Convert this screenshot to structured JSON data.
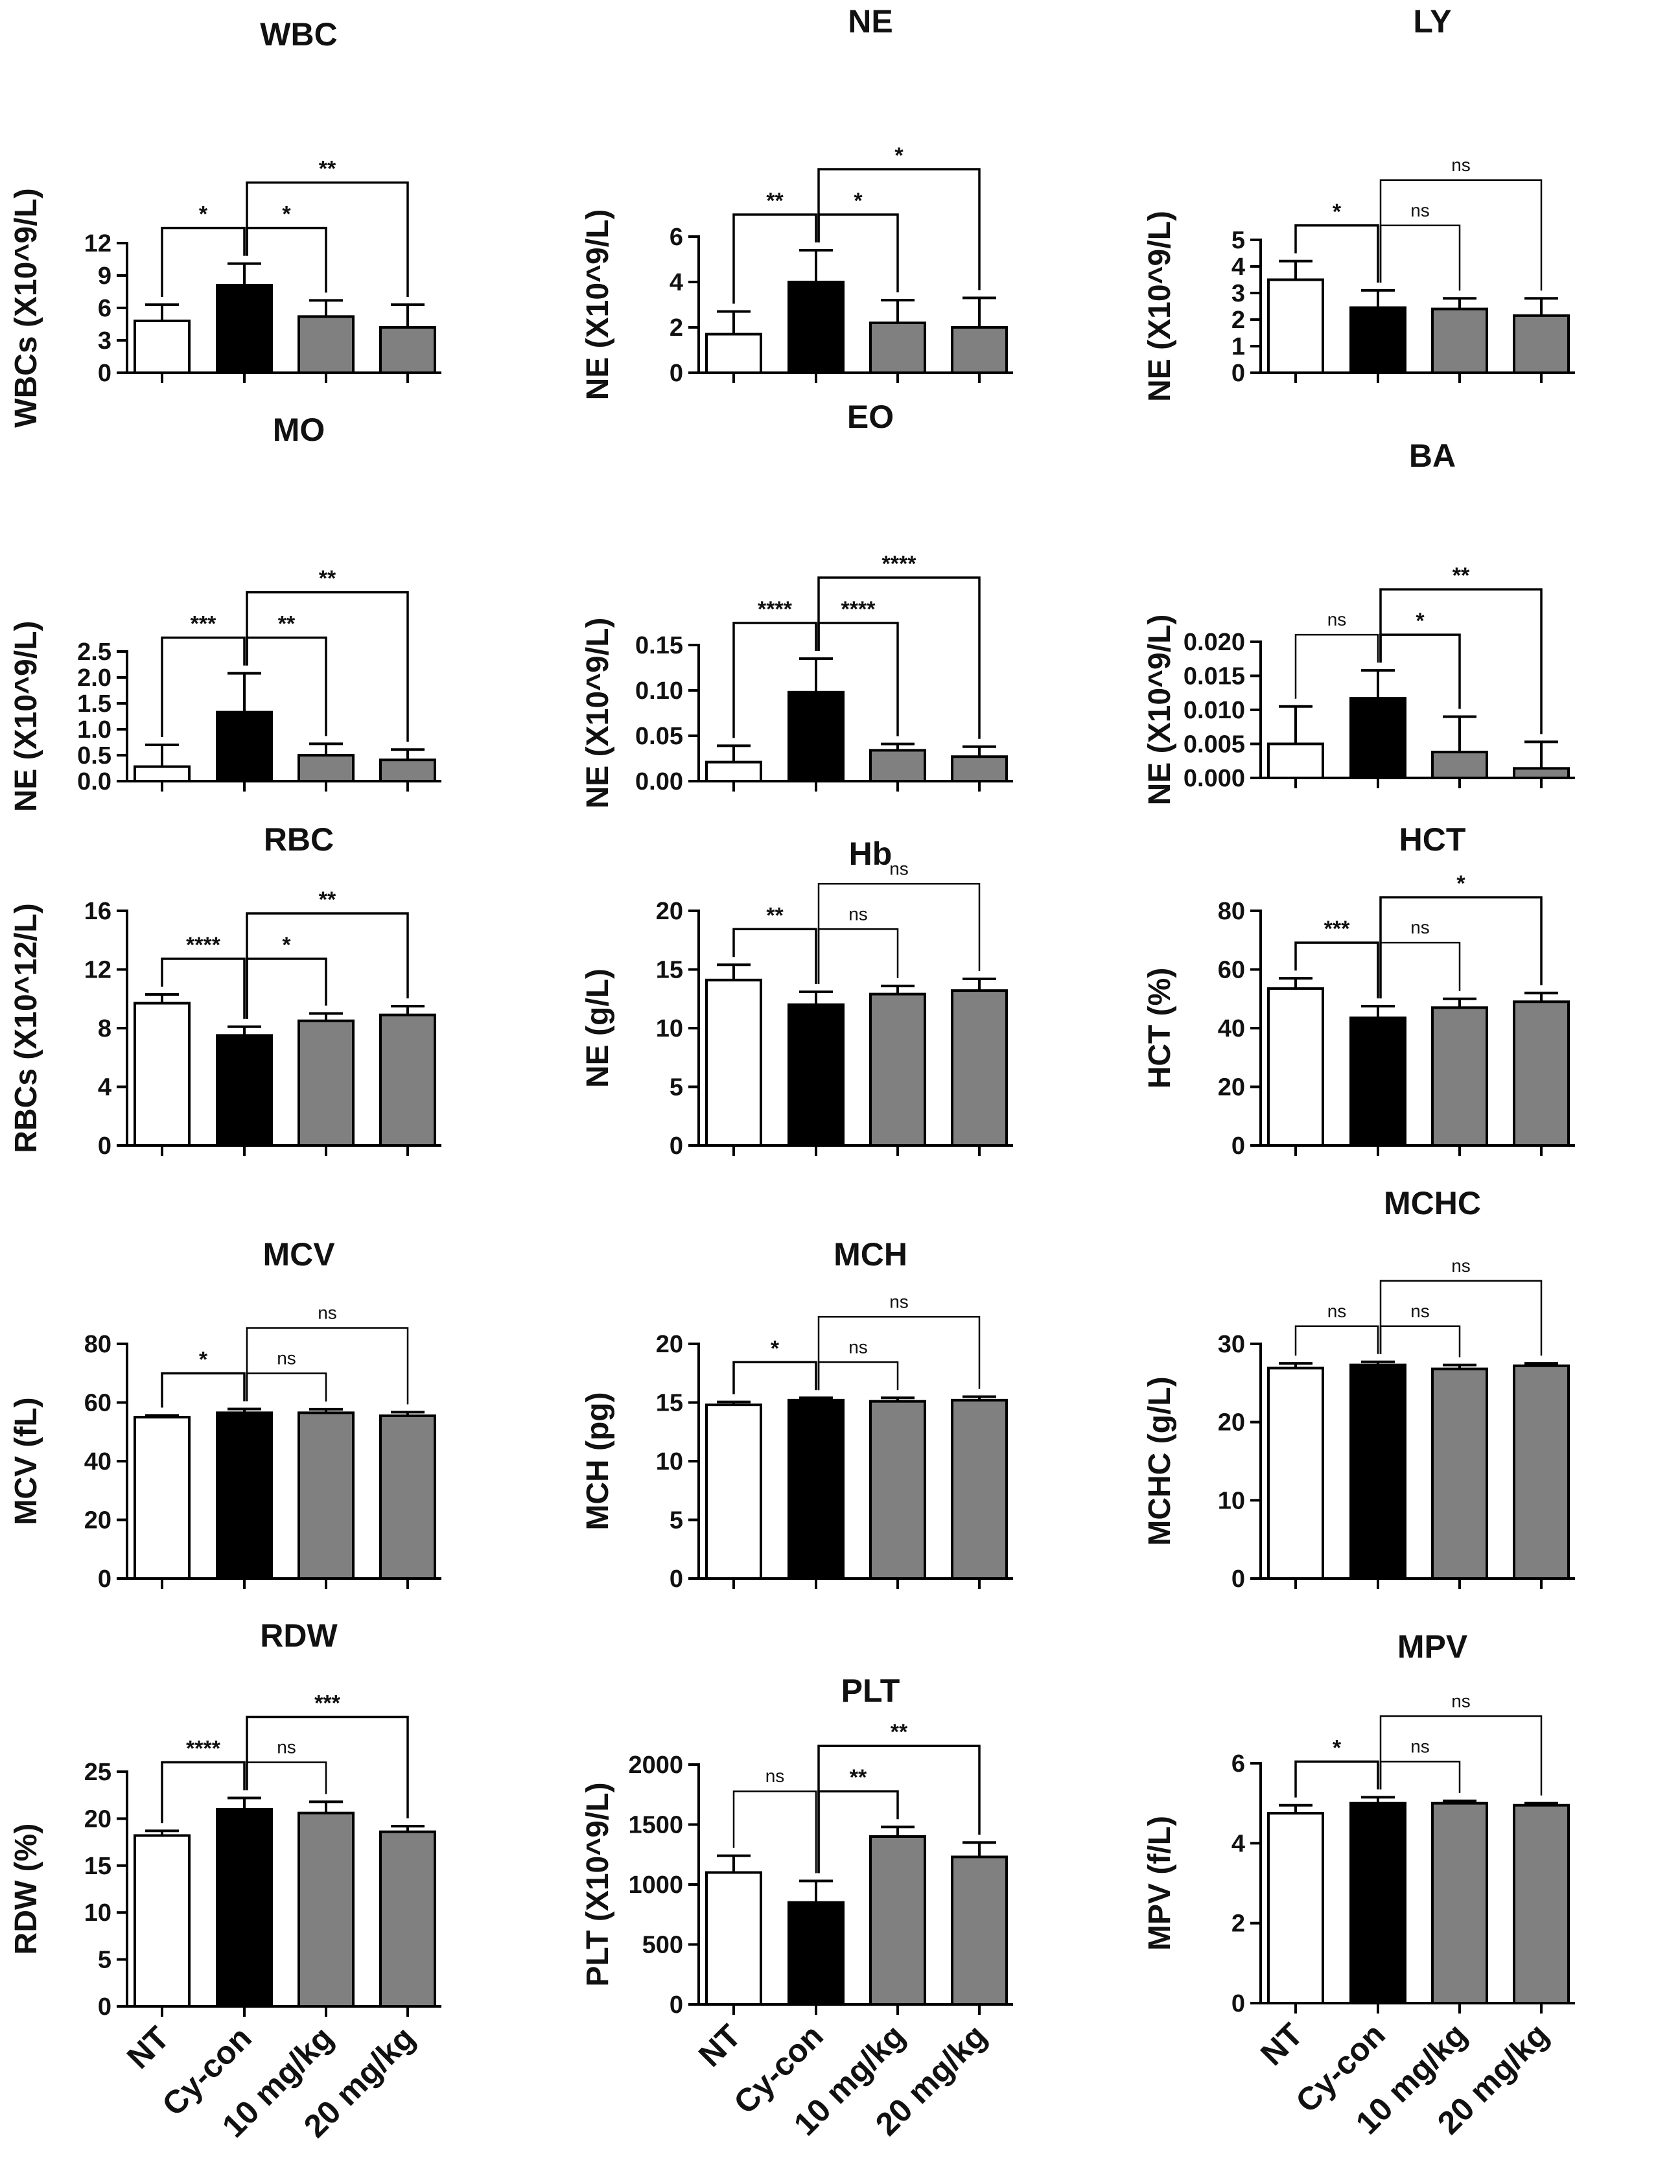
{
  "categories": [
    "NT",
    "Cy-con",
    "10 mg/kg",
    "20 mg/kg"
  ],
  "colors": {
    "NT": "#ffffff",
    "Cy-con": "#000000",
    "10 mg/kg": "#808080",
    "20 mg/kg": "#808080",
    "stroke": "#000000"
  },
  "chart_data": [
    {
      "type": "bar",
      "title": "WBC",
      "ylabel": "WBCs (X10^9/L)",
      "ylim": [
        0,
        12
      ],
      "yticks": [
        "0",
        "3",
        "6",
        "9",
        "12"
      ],
      "categories": [
        "NT",
        "Cy-con",
        "10 mg/kg",
        "20 mg/kg"
      ],
      "values": [
        4.8,
        8.1,
        5.2,
        4.2
      ],
      "errors": [
        1.5,
        2.0,
        1.5,
        2.1
      ],
      "comparisons": [
        {
          "from": "NT",
          "to": "Cy-con",
          "label": "*"
        },
        {
          "from": "Cy-con",
          "to": "10 mg/kg",
          "label": "*"
        },
        {
          "from": "Cy-con",
          "to": "20 mg/kg",
          "label": "**"
        }
      ]
    },
    {
      "type": "bar",
      "title": "NE",
      "ylabel": "NE (X10^9/L)",
      "ylim": [
        0,
        6
      ],
      "yticks": [
        "0",
        "2",
        "4",
        "6"
      ],
      "categories": [
        "NT",
        "Cy-con",
        "10 mg/kg",
        "20 mg/kg"
      ],
      "values": [
        1.7,
        4.0,
        2.2,
        2.0
      ],
      "errors": [
        1.0,
        1.4,
        1.0,
        1.3
      ],
      "comparisons": [
        {
          "from": "NT",
          "to": "Cy-con",
          "label": "**"
        },
        {
          "from": "Cy-con",
          "to": "10 mg/kg",
          "label": "*"
        },
        {
          "from": "Cy-con",
          "to": "20 mg/kg",
          "label": "*"
        }
      ]
    },
    {
      "type": "bar",
      "title": "LY",
      "ylabel": "NE (X10^9/L)",
      "ylim": [
        0,
        5
      ],
      "yticks": [
        "0",
        "1",
        "2",
        "3",
        "4",
        "5"
      ],
      "categories": [
        "NT",
        "Cy-con",
        "10 mg/kg",
        "20 mg/kg"
      ],
      "values": [
        3.5,
        2.45,
        2.4,
        2.15
      ],
      "errors": [
        0.7,
        0.65,
        0.4,
        0.65
      ],
      "comparisons": [
        {
          "from": "NT",
          "to": "Cy-con",
          "label": "*"
        },
        {
          "from": "Cy-con",
          "to": "10 mg/kg",
          "label": "ns"
        },
        {
          "from": "Cy-con",
          "to": "20 mg/kg",
          "label": "ns"
        }
      ]
    },
    {
      "type": "bar",
      "title": "MO",
      "ylabel": "NE (X10^9/L)",
      "ylim": [
        0,
        2.5
      ],
      "yticks": [
        "0.0",
        "0.5",
        "1.0",
        "1.5",
        "2.0",
        "2.5"
      ],
      "categories": [
        "NT",
        "Cy-con",
        "10 mg/kg",
        "20 mg/kg"
      ],
      "values": [
        0.28,
        1.33,
        0.5,
        0.41
      ],
      "errors": [
        0.42,
        0.75,
        0.22,
        0.2
      ],
      "comparisons": [
        {
          "from": "NT",
          "to": "Cy-con",
          "label": "***"
        },
        {
          "from": "Cy-con",
          "to": "10 mg/kg",
          "label": "**"
        },
        {
          "from": "Cy-con",
          "to": "20 mg/kg",
          "label": "**"
        }
      ]
    },
    {
      "type": "bar",
      "title": "EO",
      "ylabel": "NE (X10^9/L)",
      "ylim": [
        0,
        0.15
      ],
      "yticks": [
        "0.00",
        "0.05",
        "0.10",
        "0.15"
      ],
      "categories": [
        "NT",
        "Cy-con",
        "10 mg/kg",
        "20 mg/kg"
      ],
      "values": [
        0.021,
        0.098,
        0.034,
        0.027
      ],
      "errors": [
        0.018,
        0.037,
        0.007,
        0.011
      ],
      "comparisons": [
        {
          "from": "NT",
          "to": "Cy-con",
          "label": "****"
        },
        {
          "from": "Cy-con",
          "to": "10 mg/kg",
          "label": "****"
        },
        {
          "from": "Cy-con",
          "to": "20 mg/kg",
          "label": "****"
        }
      ]
    },
    {
      "type": "bar",
      "title": "BA",
      "ylabel": "NE (X10^9/L)",
      "ylim": [
        0,
        0.02
      ],
      "yticks": [
        "0.000",
        "0.005",
        "0.010",
        "0.015",
        "0.020"
      ],
      "categories": [
        "NT",
        "Cy-con",
        "10 mg/kg",
        "20 mg/kg"
      ],
      "values": [
        0.005,
        0.0117,
        0.0038,
        0.0014
      ],
      "errors": [
        0.0055,
        0.0041,
        0.0052,
        0.0039
      ],
      "comparisons": [
        {
          "from": "NT",
          "to": "Cy-con",
          "label": "ns"
        },
        {
          "from": "Cy-con",
          "to": "10 mg/kg",
          "label": "*"
        },
        {
          "from": "Cy-con",
          "to": "20 mg/kg",
          "label": "**"
        }
      ]
    },
    {
      "type": "bar",
      "title": "RBC",
      "ylabel": "RBCs (X10^12/L)",
      "ylim": [
        0,
        16
      ],
      "yticks": [
        "0",
        "4",
        "8",
        "12",
        "16"
      ],
      "categories": [
        "NT",
        "Cy-con",
        "10 mg/kg",
        "20 mg/kg"
      ],
      "values": [
        9.7,
        7.5,
        8.5,
        8.9
      ],
      "errors": [
        0.6,
        0.6,
        0.5,
        0.6
      ],
      "comparisons": [
        {
          "from": "NT",
          "to": "Cy-con",
          "label": "****"
        },
        {
          "from": "Cy-con",
          "to": "10 mg/kg",
          "label": "*"
        },
        {
          "from": "Cy-con",
          "to": "20 mg/kg",
          "label": "**"
        }
      ]
    },
    {
      "type": "bar",
      "title": "Hb",
      "ylabel": "NE (g/L)",
      "ylim": [
        0,
        20
      ],
      "yticks": [
        "0",
        "5",
        "10",
        "15",
        "20"
      ],
      "categories": [
        "NT",
        "Cy-con",
        "10 mg/kg",
        "20 mg/kg"
      ],
      "values": [
        14.1,
        12.0,
        12.9,
        13.2
      ],
      "errors": [
        1.3,
        1.1,
        0.7,
        1.0
      ],
      "comparisons": [
        {
          "from": "NT",
          "to": "Cy-con",
          "label": "**"
        },
        {
          "from": "Cy-con",
          "to": "10 mg/kg",
          "label": "ns"
        },
        {
          "from": "Cy-con",
          "to": "20 mg/kg",
          "label": "ns"
        }
      ]
    },
    {
      "type": "bar",
      "title": "HCT",
      "ylabel": "HCT (%)",
      "ylim": [
        0,
        80
      ],
      "yticks": [
        "0",
        "20",
        "40",
        "60",
        "80"
      ],
      "categories": [
        "NT",
        "Cy-con",
        "10 mg/kg",
        "20 mg/kg"
      ],
      "values": [
        53.5,
        43.5,
        47.0,
        49.0
      ],
      "errors": [
        3.5,
        4.0,
        3.0,
        3.0
      ],
      "comparisons": [
        {
          "from": "NT",
          "to": "Cy-con",
          "label": "***"
        },
        {
          "from": "Cy-con",
          "to": "10 mg/kg",
          "label": "ns"
        },
        {
          "from": "Cy-con",
          "to": "20 mg/kg",
          "label": "*"
        }
      ]
    },
    {
      "type": "bar",
      "title": "MCV",
      "ylabel": "MCV (fL)",
      "ylim": [
        0,
        80
      ],
      "yticks": [
        "0",
        "20",
        "40",
        "60",
        "80"
      ],
      "categories": [
        "NT",
        "Cy-con",
        "10 mg/kg",
        "20 mg/kg"
      ],
      "values": [
        55.0,
        56.5,
        56.5,
        55.5
      ],
      "errors": [
        0.6,
        1.3,
        1.2,
        1.2
      ],
      "comparisons": [
        {
          "from": "NT",
          "to": "Cy-con",
          "label": "*"
        },
        {
          "from": "Cy-con",
          "to": "10 mg/kg",
          "label": "ns"
        },
        {
          "from": "Cy-con",
          "to": "20 mg/kg",
          "label": "ns"
        }
      ]
    },
    {
      "type": "bar",
      "title": "MCH",
      "ylabel": "MCH (pg)",
      "ylim": [
        0,
        20
      ],
      "yticks": [
        "0",
        "5",
        "10",
        "15",
        "20"
      ],
      "categories": [
        "NT",
        "Cy-con",
        "10 mg/kg",
        "20 mg/kg"
      ],
      "values": [
        14.8,
        15.2,
        15.1,
        15.2
      ],
      "errors": [
        0.25,
        0.2,
        0.3,
        0.3
      ],
      "comparisons": [
        {
          "from": "NT",
          "to": "Cy-con",
          "label": "*"
        },
        {
          "from": "Cy-con",
          "to": "10 mg/kg",
          "label": "ns"
        },
        {
          "from": "Cy-con",
          "to": "20 mg/kg",
          "label": "ns"
        }
      ]
    },
    {
      "type": "bar",
      "title": "MCHC",
      "ylabel": "MCHC (g/L)",
      "ylim": [
        0,
        30
      ],
      "yticks": [
        "0",
        "10",
        "20",
        "30"
      ],
      "categories": [
        "NT",
        "Cy-con",
        "10 mg/kg",
        "20 mg/kg"
      ],
      "values": [
        26.9,
        27.3,
        26.8,
        27.2
      ],
      "errors": [
        0.6,
        0.4,
        0.5,
        0.3
      ],
      "comparisons": [
        {
          "from": "NT",
          "to": "Cy-con",
          "label": "ns"
        },
        {
          "from": "Cy-con",
          "to": "10 mg/kg",
          "label": "ns"
        },
        {
          "from": "Cy-con",
          "to": "20 mg/kg",
          "label": "ns"
        }
      ]
    },
    {
      "type": "bar",
      "title": "RDW",
      "ylabel": "RDW (%)",
      "ylim": [
        0,
        25
      ],
      "yticks": [
        "0",
        "5",
        "10",
        "15",
        "20",
        "25"
      ],
      "categories": [
        "NT",
        "Cy-con",
        "10 mg/kg",
        "20 mg/kg"
      ],
      "values": [
        18.2,
        21.0,
        20.6,
        18.6
      ],
      "errors": [
        0.5,
        1.2,
        1.2,
        0.6
      ],
      "comparisons": [
        {
          "from": "NT",
          "to": "Cy-con",
          "label": "****"
        },
        {
          "from": "Cy-con",
          "to": "10 mg/kg",
          "label": "ns"
        },
        {
          "from": "Cy-con",
          "to": "20 mg/kg",
          "label": "***"
        }
      ]
    },
    {
      "type": "bar",
      "title": "PLT",
      "ylabel": "PLT (X10^9/L)",
      "ylim": [
        0,
        2000
      ],
      "yticks": [
        "0",
        "500",
        "1000",
        "1500",
        "2000"
      ],
      "categories": [
        "NT",
        "Cy-con",
        "10 mg/kg",
        "20 mg/kg"
      ],
      "values": [
        1100,
        850,
        1400,
        1230
      ],
      "errors": [
        140,
        180,
        80,
        120
      ],
      "comparisons": [
        {
          "from": "NT",
          "to": "Cy-con",
          "label": "ns"
        },
        {
          "from": "Cy-con",
          "to": "10 mg/kg",
          "label": "**"
        },
        {
          "from": "Cy-con",
          "to": "20 mg/kg",
          "label": "**"
        }
      ]
    },
    {
      "type": "bar",
      "title": "MPV",
      "ylabel": "MPV (f/L)",
      "ylim": [
        0,
        6
      ],
      "yticks": [
        "0",
        "2",
        "4",
        "6"
      ],
      "categories": [
        "NT",
        "Cy-con",
        "10 mg/kg",
        "20 mg/kg"
      ],
      "values": [
        4.75,
        5.0,
        5.0,
        4.95
      ],
      "errors": [
        0.2,
        0.15,
        0.06,
        0.05
      ],
      "comparisons": [
        {
          "from": "NT",
          "to": "Cy-con",
          "label": "*"
        },
        {
          "from": "Cy-con",
          "to": "10 mg/kg",
          "label": "ns"
        },
        {
          "from": "Cy-con",
          "to": "20 mg/kg",
          "label": "ns"
        }
      ]
    }
  ]
}
